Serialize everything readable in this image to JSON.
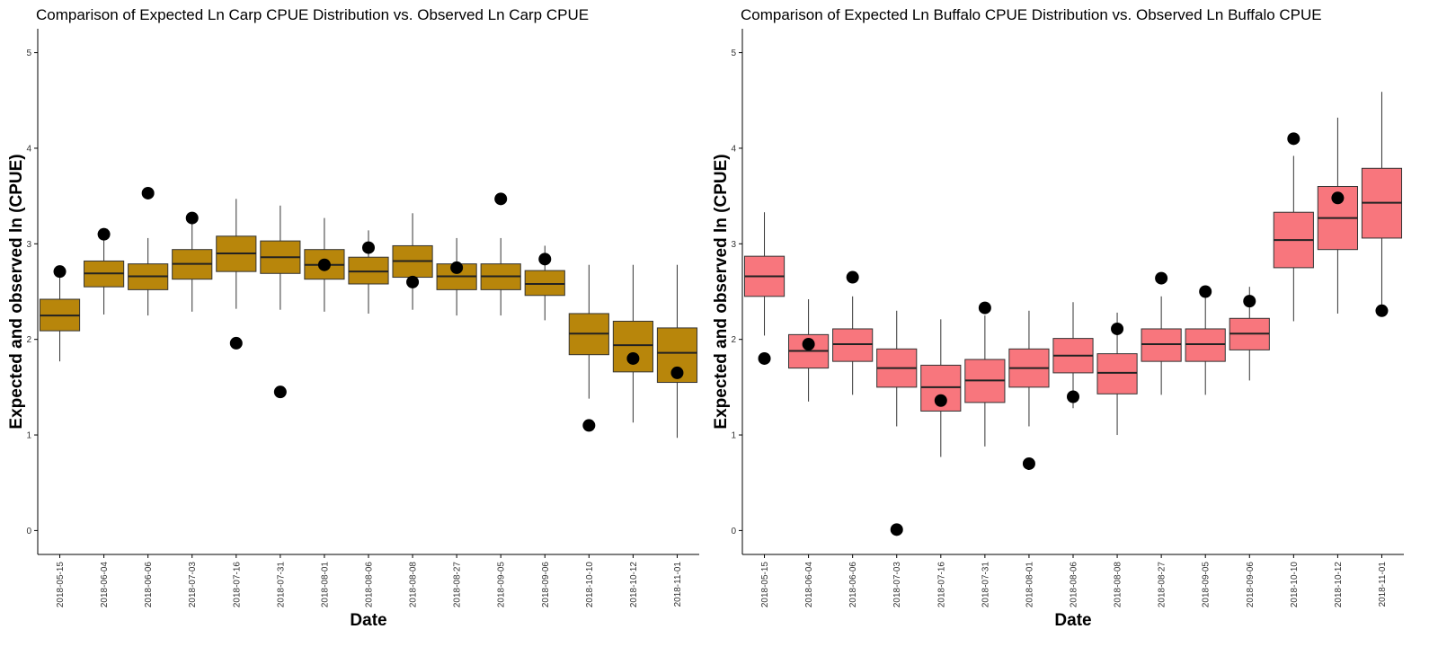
{
  "chart_data": [
    {
      "type": "box",
      "title": "Comparison of Expected Ln Carp CPUE Distribution vs. Observed Ln Carp CPUE",
      "xlabel": "Date",
      "ylabel": "Expected and observed ln (CPUE)",
      "ylim": [
        -0.25,
        5.25
      ],
      "yticks": [
        0,
        1,
        2,
        3,
        4,
        5
      ],
      "box_color": "#B8860B",
      "point_color": "#000000",
      "categories": [
        "2018-05-15",
        "2018-06-04",
        "2018-06-06",
        "2018-07-03",
        "2018-07-16",
        "2018-07-31",
        "2018-08-01",
        "2018-08-06",
        "2018-08-08",
        "2018-08-27",
        "2018-09-05",
        "2018-09-06",
        "2018-10-10",
        "2018-10-12",
        "2018-11-01"
      ],
      "boxes": [
        {
          "lower": 1.77,
          "q1": 2.09,
          "median": 2.25,
          "q3": 2.42,
          "upper": 2.76
        },
        {
          "lower": 2.26,
          "q1": 2.55,
          "median": 2.69,
          "q3": 2.82,
          "upper": 3.04
        },
        {
          "lower": 2.25,
          "q1": 2.52,
          "median": 2.66,
          "q3": 2.79,
          "upper": 3.06
        },
        {
          "lower": 2.29,
          "q1": 2.63,
          "median": 2.79,
          "q3": 2.94,
          "upper": 3.22
        },
        {
          "lower": 2.32,
          "q1": 2.71,
          "median": 2.9,
          "q3": 3.08,
          "upper": 3.47
        },
        {
          "lower": 2.31,
          "q1": 2.69,
          "median": 2.86,
          "q3": 3.03,
          "upper": 3.4
        },
        {
          "lower": 2.29,
          "q1": 2.63,
          "median": 2.78,
          "q3": 2.94,
          "upper": 3.27
        },
        {
          "lower": 2.27,
          "q1": 2.58,
          "median": 2.71,
          "q3": 2.86,
          "upper": 3.14
        },
        {
          "lower": 2.31,
          "q1": 2.65,
          "median": 2.82,
          "q3": 2.98,
          "upper": 3.32
        },
        {
          "lower": 2.25,
          "q1": 2.52,
          "median": 2.66,
          "q3": 2.79,
          "upper": 3.06
        },
        {
          "lower": 2.25,
          "q1": 2.52,
          "median": 2.66,
          "q3": 2.79,
          "upper": 3.06
        },
        {
          "lower": 2.2,
          "q1": 2.46,
          "median": 2.58,
          "q3": 2.72,
          "upper": 2.98
        },
        {
          "lower": 1.38,
          "q1": 1.84,
          "median": 2.06,
          "q3": 2.27,
          "upper": 2.78
        },
        {
          "lower": 1.13,
          "q1": 1.66,
          "median": 1.94,
          "q3": 2.19,
          "upper": 2.78
        },
        {
          "lower": 0.97,
          "q1": 1.55,
          "median": 1.86,
          "q3": 2.12,
          "upper": 2.78
        }
      ],
      "observed": [
        2.71,
        3.1,
        3.53,
        3.27,
        1.96,
        1.45,
        2.78,
        2.96,
        2.6,
        2.75,
        3.47,
        2.84,
        1.1,
        1.8,
        1.65
      ]
    },
    {
      "type": "box",
      "title": "Comparison of Expected Ln Buffalo CPUE Distribution vs. Observed Ln Buffalo CPUE",
      "xlabel": "Date",
      "ylabel": "Expected and observed ln (CPUE)",
      "ylim": [
        -0.25,
        5.25
      ],
      "yticks": [
        0,
        1,
        2,
        3,
        4,
        5
      ],
      "box_color": "#F8767D",
      "point_color": "#000000",
      "categories": [
        "2018-05-15",
        "2018-06-04",
        "2018-06-06",
        "2018-07-03",
        "2018-07-16",
        "2018-07-31",
        "2018-08-01",
        "2018-08-06",
        "2018-08-08",
        "2018-08-27",
        "2018-09-05",
        "2018-09-06",
        "2018-10-10",
        "2018-10-12",
        "2018-11-01"
      ],
      "boxes": [
        {
          "lower": 2.04,
          "q1": 2.45,
          "median": 2.66,
          "q3": 2.87,
          "upper": 3.33
        },
        {
          "lower": 1.35,
          "q1": 1.7,
          "median": 1.88,
          "q3": 2.05,
          "upper": 2.42
        },
        {
          "lower": 1.42,
          "q1": 1.77,
          "median": 1.95,
          "q3": 2.11,
          "upper": 2.45
        },
        {
          "lower": 1.09,
          "q1": 1.5,
          "median": 1.7,
          "q3": 1.9,
          "upper": 2.3
        },
        {
          "lower": 0.77,
          "q1": 1.25,
          "median": 1.5,
          "q3": 1.73,
          "upper": 2.21
        },
        {
          "lower": 0.88,
          "q1": 1.34,
          "median": 1.57,
          "q3": 1.79,
          "upper": 2.25
        },
        {
          "lower": 1.09,
          "q1": 1.5,
          "median": 1.7,
          "q3": 1.9,
          "upper": 2.3
        },
        {
          "lower": 1.28,
          "q1": 1.65,
          "median": 1.83,
          "q3": 2.01,
          "upper": 2.39
        },
        {
          "lower": 1.0,
          "q1": 1.43,
          "median": 1.65,
          "q3": 1.85,
          "upper": 2.28
        },
        {
          "lower": 1.42,
          "q1": 1.77,
          "median": 1.95,
          "q3": 2.11,
          "upper": 2.45
        },
        {
          "lower": 1.42,
          "q1": 1.77,
          "median": 1.95,
          "q3": 2.11,
          "upper": 2.45
        },
        {
          "lower": 1.57,
          "q1": 1.89,
          "median": 2.06,
          "q3": 2.22,
          "upper": 2.55
        },
        {
          "lower": 2.19,
          "q1": 2.75,
          "median": 3.04,
          "q3": 3.33,
          "upper": 3.92
        },
        {
          "lower": 2.27,
          "q1": 2.94,
          "median": 3.27,
          "q3": 3.6,
          "upper": 4.32
        },
        {
          "lower": 2.27,
          "q1": 3.06,
          "median": 3.43,
          "q3": 3.79,
          "upper": 4.59
        }
      ],
      "observed": [
        1.8,
        1.95,
        2.65,
        0.01,
        1.36,
        2.33,
        0.7,
        1.4,
        2.11,
        2.64,
        2.5,
        2.4,
        4.1,
        3.48,
        2.3
      ]
    }
  ]
}
